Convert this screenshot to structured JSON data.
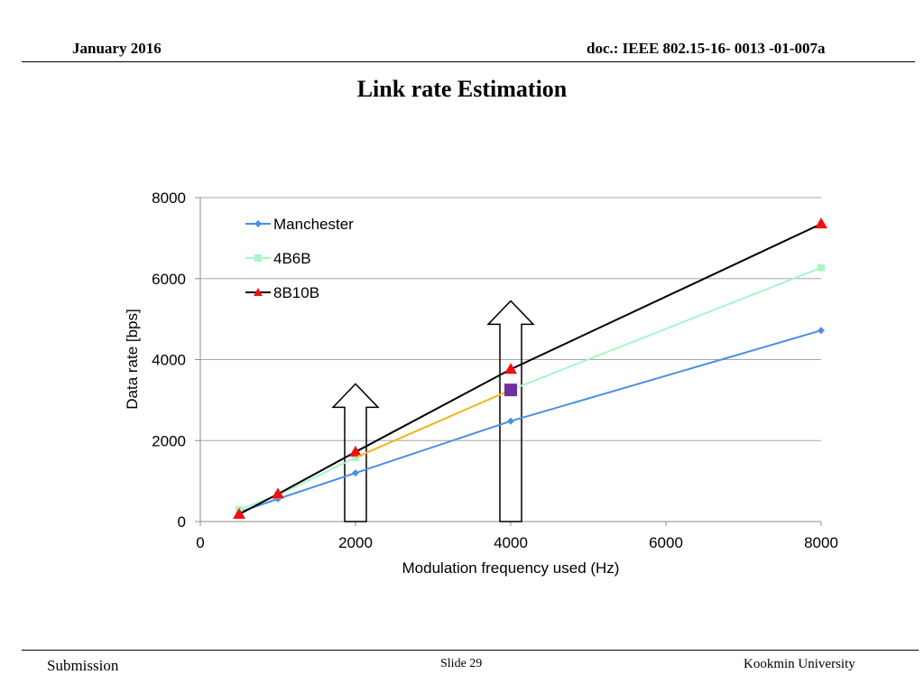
{
  "header": {
    "date": "January 2016",
    "doc": "doc.: IEEE 802.15-16- 0013 -01-007a"
  },
  "slide_title": "Link rate Estimation",
  "footer": {
    "left": "Submission",
    "center": "Slide 29",
    "right": "Kookmin University"
  },
  "chart_data": {
    "type": "line",
    "xlabel": "Modulation frequency used (Hz)",
    "ylabel": "Data rate [bps]",
    "xlim": [
      0,
      8000
    ],
    "ylim": [
      0,
      8000
    ],
    "x_ticks": [
      "0",
      "2000",
      "4000",
      "6000",
      "8000"
    ],
    "y_ticks": [
      "0",
      "2000",
      "4000",
      "6000",
      "8000"
    ],
    "grid": "horizontal",
    "legend_position": "top-left",
    "series": [
      {
        "name": "Manchester",
        "color": "#4a90e2",
        "marker": "diamond",
        "points": [
          [
            500,
            230
          ],
          [
            1000,
            560
          ],
          [
            2000,
            1200
          ],
          [
            4000,
            2480
          ],
          [
            8000,
            4720
          ]
        ]
      },
      {
        "name": "4B6B",
        "color": "#a8f5c8",
        "marker": "square",
        "points": [
          [
            500,
            290
          ],
          [
            1000,
            650
          ],
          [
            2000,
            1580
          ],
          [
            4000,
            3250
          ],
          [
            8000,
            6270
          ]
        ]
      },
      {
        "name": "8B10B",
        "color": "#000000",
        "marker": "triangle",
        "marker_color": "#ee1111",
        "points": [
          [
            500,
            180
          ],
          [
            1000,
            680
          ],
          [
            2000,
            1720
          ],
          [
            4000,
            3760
          ],
          [
            8000,
            7350
          ]
        ]
      }
    ],
    "annotations": {
      "highlight_segment": {
        "color": "#f0b820",
        "from": [
          2000,
          1580
        ],
        "to": [
          4000,
          3250
        ]
      },
      "highlight_point": {
        "color": "#7030a0",
        "x": 4000,
        "y": 3250
      },
      "arrows": [
        {
          "x": 2000,
          "y_from": 0,
          "y_to": 3400
        },
        {
          "x": 4000,
          "y_from": 0,
          "y_to": 5450
        }
      ]
    }
  }
}
